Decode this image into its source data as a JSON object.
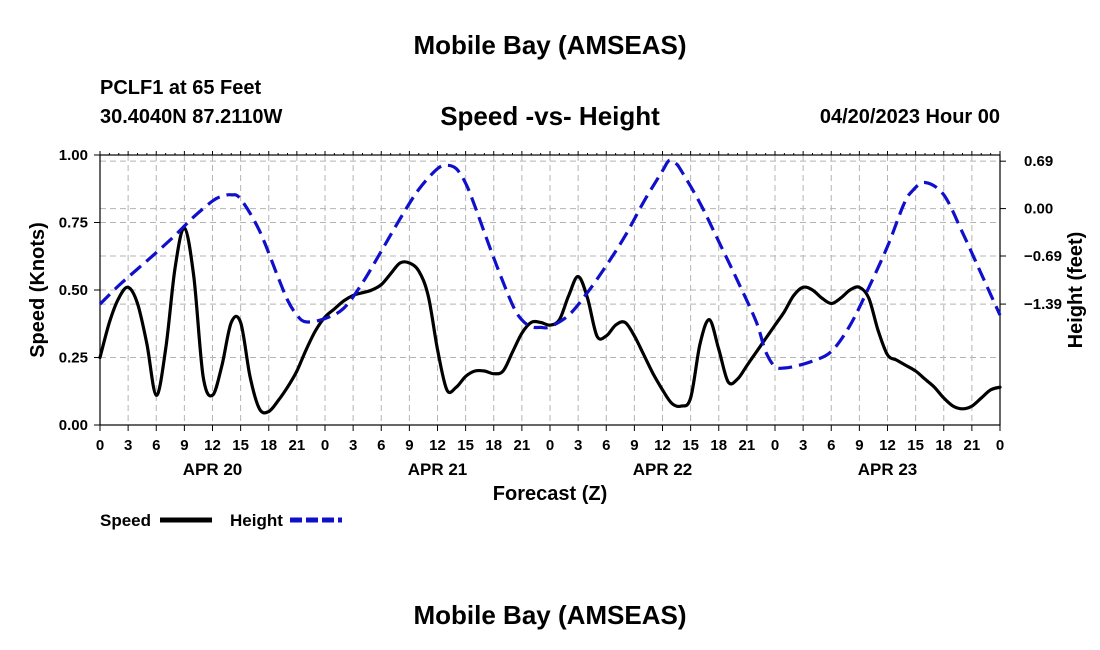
{
  "header": {
    "title": "Mobile Bay (AMSEAS)",
    "station": "PCLF1 at 65 Feet",
    "coords": "30.4040N  87.2110W",
    "subtitle": "Speed -vs- Height",
    "datetime": "04/20/2023 Hour 00",
    "footer_title": "Mobile Bay (AMSEAS)"
  },
  "chart_data": {
    "type": "line",
    "xlabel": "Forecast (Z)",
    "ylabel": "Speed (Knots)",
    "y2label": "Height (feet)",
    "xlim": [
      0,
      96
    ],
    "ylim": [
      0,
      1
    ],
    "y2lim": [
      -3.15,
      0.78
    ],
    "x_ticks": [
      0,
      3,
      6,
      9,
      12,
      15,
      18,
      21,
      24,
      27,
      30,
      33,
      36,
      39,
      42,
      45,
      48,
      51,
      54,
      57,
      60,
      63,
      66,
      69,
      72,
      75,
      78,
      81,
      84,
      87,
      90,
      93,
      96
    ],
    "x_tick_labels": [
      "0",
      "3",
      "6",
      "9",
      "12",
      "15",
      "18",
      "21",
      "0",
      "3",
      "6",
      "9",
      "12",
      "15",
      "18",
      "21",
      "0",
      "3",
      "6",
      "9",
      "12",
      "15",
      "18",
      "21",
      "0",
      "3",
      "6",
      "9",
      "12",
      "15",
      "18",
      "21",
      "0"
    ],
    "day_labels": [
      {
        "label": "APR 20",
        "x": 12
      },
      {
        "label": "APR 21",
        "x": 36
      },
      {
        "label": "APR 22",
        "x": 60
      },
      {
        "label": "APR 23",
        "x": 84
      }
    ],
    "y_ticks": [
      0,
      0.25,
      0.5,
      0.75,
      1.0
    ],
    "y_tick_labels": [
      "0.00",
      "0.25",
      "0.50",
      "0.75",
      "1.00"
    ],
    "y2_ticks": [
      -1.39,
      -0.69,
      0.0,
      0.69
    ],
    "y2_tick_labels": [
      "−1.39",
      "−0.69",
      "0.00",
      "0.69"
    ],
    "grid": true,
    "series": [
      {
        "name": "Speed",
        "axis": "left",
        "color": "#000000",
        "dash": "solid",
        "x": [
          0,
          1,
          2,
          3,
          4,
          5,
          6,
          7,
          8,
          9,
          10,
          11,
          12,
          13,
          14,
          15,
          16,
          17,
          18,
          19,
          20,
          21,
          22,
          23,
          24,
          25,
          26,
          27,
          28,
          29,
          30,
          31,
          32,
          33,
          34,
          35,
          36,
          37,
          38,
          39,
          40,
          41,
          42,
          43,
          44,
          45,
          46,
          47,
          48,
          49,
          50,
          51,
          52,
          53,
          54,
          55,
          56,
          57,
          58,
          59,
          60,
          61,
          62,
          63,
          64,
          65,
          66,
          67,
          68,
          69,
          70,
          71,
          72,
          73,
          74,
          75,
          76,
          77,
          78,
          79,
          80,
          81,
          82,
          83,
          84,
          85,
          86,
          87,
          88,
          89,
          90,
          91,
          92,
          93,
          94,
          95,
          96
        ],
        "values": [
          0.25,
          0.38,
          0.47,
          0.51,
          0.45,
          0.3,
          0.11,
          0.28,
          0.58,
          0.73,
          0.55,
          0.18,
          0.11,
          0.22,
          0.38,
          0.38,
          0.18,
          0.06,
          0.05,
          0.09,
          0.14,
          0.2,
          0.28,
          0.35,
          0.4,
          0.43,
          0.46,
          0.48,
          0.49,
          0.5,
          0.52,
          0.56,
          0.6,
          0.6,
          0.57,
          0.48,
          0.28,
          0.13,
          0.14,
          0.18,
          0.2,
          0.2,
          0.19,
          0.2,
          0.27,
          0.34,
          0.38,
          0.38,
          0.37,
          0.39,
          0.48,
          0.55,
          0.47,
          0.33,
          0.33,
          0.37,
          0.38,
          0.33,
          0.26,
          0.19,
          0.13,
          0.08,
          0.07,
          0.1,
          0.3,
          0.39,
          0.28,
          0.16,
          0.17,
          0.22,
          0.27,
          0.32,
          0.37,
          0.42,
          0.48,
          0.51,
          0.5,
          0.47,
          0.45,
          0.47,
          0.5,
          0.51,
          0.47,
          0.35,
          0.26,
          0.24,
          0.22,
          0.2,
          0.17,
          0.14,
          0.1,
          0.07,
          0.06,
          0.07,
          0.1,
          0.13,
          0.14
        ]
      },
      {
        "name": "Height",
        "axis": "right",
        "color": "#1010cc",
        "dash": "dashed",
        "x": [
          0,
          2,
          4,
          6,
          8,
          10,
          12,
          13,
          14,
          15,
          17,
          19,
          20,
          21,
          22,
          24,
          26,
          28,
          30,
          32,
          34,
          36,
          37,
          38,
          39,
          40,
          42,
          44,
          45,
          46,
          47,
          48,
          50,
          52,
          54,
          56,
          58,
          60,
          60.7,
          61.4,
          62,
          64,
          66,
          68,
          70,
          71,
          72,
          73,
          74,
          76,
          78,
          80,
          82,
          84,
          85.7,
          86.6,
          88,
          90,
          92,
          94,
          96
        ],
        "values": [
          -1.39,
          -1.12,
          -0.88,
          -0.64,
          -0.39,
          -0.12,
          0.11,
          0.18,
          0.2,
          0.14,
          -0.32,
          -1.0,
          -1.33,
          -1.55,
          -1.65,
          -1.6,
          -1.45,
          -1.08,
          -0.62,
          -0.15,
          0.28,
          0.58,
          0.63,
          0.58,
          0.37,
          0.03,
          -0.72,
          -1.4,
          -1.62,
          -1.72,
          -1.73,
          -1.72,
          -1.55,
          -1.22,
          -0.83,
          -0.4,
          0.1,
          0.55,
          0.7,
          0.66,
          0.55,
          0.08,
          -0.48,
          -1.05,
          -1.65,
          -2.08,
          -2.3,
          -2.32,
          -2.3,
          -2.22,
          -2.08,
          -1.7,
          -1.15,
          -0.55,
          0.05,
          0.25,
          0.38,
          0.2,
          -0.35,
          -0.95,
          -1.55
        ]
      }
    ]
  },
  "legend": {
    "speed_label": "Speed",
    "height_label": "Height"
  }
}
